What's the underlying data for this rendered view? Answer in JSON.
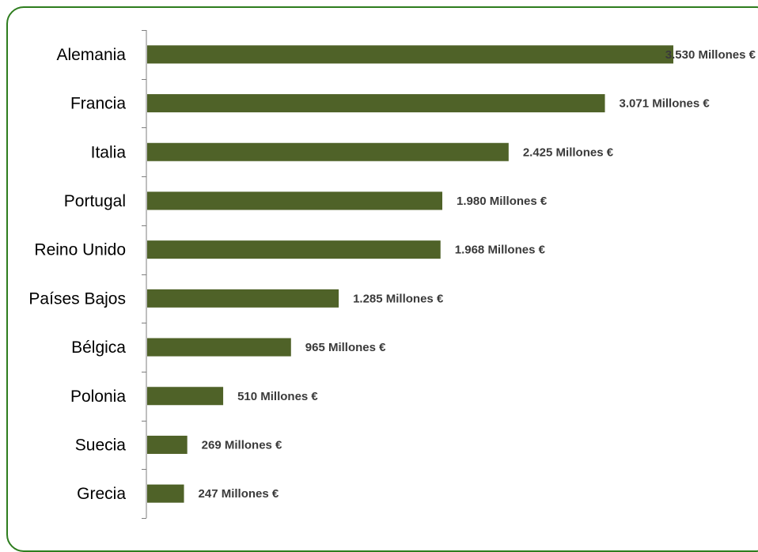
{
  "chart_data": {
    "type": "bar",
    "orientation": "horizontal",
    "categories": [
      "Alemania",
      "Francia",
      "Italia",
      "Portugal",
      "Reino Unido",
      "Países Bajos",
      "Bélgica",
      "Polonia",
      "Suecia",
      "Grecia"
    ],
    "values": [
      3530,
      3071,
      2425,
      1980,
      1968,
      1285,
      965,
      510,
      269,
      247
    ],
    "data_labels": [
      "3.530 Millones €",
      "3.071 Millones €",
      "2.425 Millones €",
      "1.980 Millones €",
      "1.968 Millones €",
      "1.285 Millones €",
      "965 Millones €",
      "510 Millones €",
      "269 Millones €",
      "247 Millones €"
    ],
    "title": "",
    "xlabel": "",
    "ylabel": "",
    "xlim": [
      0,
      3530
    ],
    "grid": false,
    "legend": "none",
    "bar_color": "#4f6228",
    "frame_color": "#2e7d1e"
  }
}
